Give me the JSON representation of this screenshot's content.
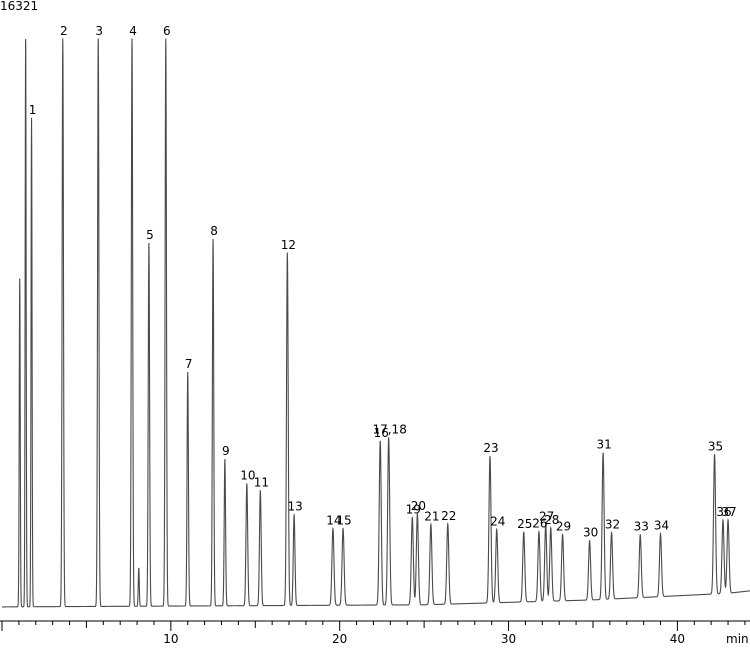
{
  "chart_data": {
    "type": "line",
    "ymax_label": "16321",
    "xlabel": "min",
    "ylabel": "",
    "xlim": [
      0,
      44.3
    ],
    "ylim": [
      0,
      16321
    ],
    "x_ticks": [
      10,
      20,
      30,
      40
    ],
    "x_tick_labels": [
      "10",
      "20",
      "30",
      "40"
    ],
    "baseline_drift": [
      [
        0,
        60
      ],
      [
        25,
        120
      ],
      [
        35,
        260
      ],
      [
        43,
        450
      ],
      [
        44.3,
        520
      ]
    ],
    "peaks": [
      {
        "label": "",
        "x": 1.05,
        "y": 9400,
        "width": 0.03
      },
      {
        "label": "",
        "x": 1.4,
        "y": 16321,
        "width": 0.03
      },
      {
        "label": "1",
        "x": 1.75,
        "y": 14000,
        "width": 0.03
      },
      {
        "label": "2",
        "x": 3.6,
        "y": 16321,
        "width": 0.04
      },
      {
        "label": "3",
        "x": 5.7,
        "y": 16321,
        "width": 0.04
      },
      {
        "label": "4",
        "x": 7.7,
        "y": 16321,
        "width": 0.04
      },
      {
        "label": "",
        "x": 8.1,
        "y": 1100,
        "width": 0.03
      },
      {
        "label": "5",
        "x": 8.7,
        "y": 10400,
        "width": 0.04
      },
      {
        "label": "6",
        "x": 9.7,
        "y": 16321,
        "width": 0.04
      },
      {
        "label": "7",
        "x": 11.0,
        "y": 6700,
        "width": 0.04
      },
      {
        "label": "8",
        "x": 12.5,
        "y": 10500,
        "width": 0.04
      },
      {
        "label": "9",
        "x": 13.2,
        "y": 4200,
        "width": 0.04
      },
      {
        "label": "10",
        "x": 14.5,
        "y": 3500,
        "width": 0.05
      },
      {
        "label": "11",
        "x": 15.3,
        "y": 3300,
        "width": 0.05
      },
      {
        "label": "12",
        "x": 16.9,
        "y": 10100,
        "width": 0.05
      },
      {
        "label": "13",
        "x": 17.3,
        "y": 2600,
        "width": 0.05
      },
      {
        "label": "14",
        "x": 19.6,
        "y": 2200,
        "width": 0.06
      },
      {
        "label": "15",
        "x": 20.2,
        "y": 2200,
        "width": 0.06
      },
      {
        "label": "16",
        "x": 22.4,
        "y": 4700,
        "width": 0.06
      },
      {
        "label": "17,18",
        "x": 22.9,
        "y": 4800,
        "width": 0.06
      },
      {
        "label": "19",
        "x": 24.3,
        "y": 2500,
        "width": 0.06
      },
      {
        "label": "20",
        "x": 24.6,
        "y": 2600,
        "width": 0.06
      },
      {
        "label": "21",
        "x": 25.4,
        "y": 2300,
        "width": 0.06
      },
      {
        "label": "22",
        "x": 26.4,
        "y": 2300,
        "width": 0.06
      },
      {
        "label": "23",
        "x": 28.9,
        "y": 4200,
        "width": 0.06
      },
      {
        "label": "24",
        "x": 29.3,
        "y": 2100,
        "width": 0.06
      },
      {
        "label": "25",
        "x": 30.9,
        "y": 2000,
        "width": 0.06
      },
      {
        "label": "26",
        "x": 31.8,
        "y": 2000,
        "width": 0.06
      },
      {
        "label": "27",
        "x": 32.2,
        "y": 2200,
        "width": 0.06
      },
      {
        "label": "28",
        "x": 32.5,
        "y": 2100,
        "width": 0.06
      },
      {
        "label": "29",
        "x": 33.2,
        "y": 1900,
        "width": 0.06
      },
      {
        "label": "30",
        "x": 34.8,
        "y": 1700,
        "width": 0.06
      },
      {
        "label": "31",
        "x": 35.6,
        "y": 4200,
        "width": 0.06
      },
      {
        "label": "32",
        "x": 36.1,
        "y": 1900,
        "width": 0.06
      },
      {
        "label": "33",
        "x": 37.8,
        "y": 1800,
        "width": 0.06
      },
      {
        "label": "34",
        "x": 39.0,
        "y": 1800,
        "width": 0.06
      },
      {
        "label": "35",
        "x": 42.2,
        "y": 4000,
        "width": 0.06
      },
      {
        "label": "36",
        "x": 42.7,
        "y": 2100,
        "width": 0.06
      },
      {
        "label": "37",
        "x": 43.0,
        "y": 2100,
        "width": 0.06
      }
    ],
    "line_color": "#4a4a4a",
    "grid": false,
    "legend": false
  }
}
